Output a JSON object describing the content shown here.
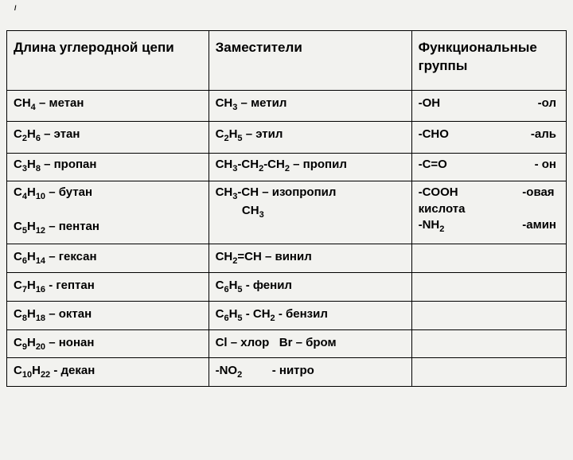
{
  "pageMark": "/",
  "headers": {
    "col1": "Длина углеродной цепи",
    "col2": "Заместители",
    "col3": "Функциональные группы"
  },
  "rows": [
    {
      "c1": "CH<sub>4</sub> – метан",
      "c2": "CH<sub>3</sub> – метил",
      "c3a": "-OH",
      "c3b": "-ол"
    },
    {
      "c1": "C<sub>2</sub>H<sub>6</sub> – этан",
      "c2": "C<sub>2</sub>H<sub>5</sub> – этил",
      "c3a": "-CHO",
      "c3b": "-аль"
    },
    {
      "c1": "C<sub>3</sub>H<sub>8</sub> – пропан",
      "c2": "CH<sub>3</sub>-CH<sub>2</sub>-CH<sub>2</sub> – пропил",
      "c3a": "-C=O",
      "c3b": "- он"
    },
    {
      "c1": "C<sub>4</sub>H<sub>10</sub> – бутан<br><br>C<sub>5</sub>H<sub>12</sub> – пентан",
      "c2": "CH<sub>3</sub>-CH – изопропил<br>&nbsp;&nbsp;&nbsp;&nbsp;&nbsp;&nbsp;&nbsp;&nbsp;CH<sub>3</sub>",
      "c3a": "-COOH<br>кислота<br>-NH<sub>2</sub>",
      "c3b": "-овая<br>&nbsp;<br>-амин"
    },
    {
      "c1": "C<sub>6</sub>H<sub>14</sub> – гексан",
      "c2": "CH<sub>2</sub>=CH – винил",
      "c3": ""
    },
    {
      "c1": "C<sub>7</sub>H<sub>16</sub> - гептан",
      "c2": "C<sub>6</sub>H<sub>5</sub> - фенил",
      "c3": ""
    },
    {
      "c1": "C<sub>8</sub>H<sub>18</sub> – октан",
      "c2": "C<sub>6</sub>H<sub>5</sub> - CH<sub>2</sub> - бензил",
      "c3": ""
    },
    {
      "c1": "C<sub>9</sub>H<sub>20</sub> – нонан",
      "c2": "Cl – хлор&nbsp;&nbsp;&nbsp;Br – бром",
      "c3": ""
    },
    {
      "c1": "C<sub>10</sub>H<sub>22</sub> - декан",
      "c2": "-NO<sub>2</sub>&nbsp;&nbsp;&nbsp;&nbsp;&nbsp;&nbsp;&nbsp;&nbsp;&nbsp;- нитро",
      "c3": ""
    }
  ]
}
